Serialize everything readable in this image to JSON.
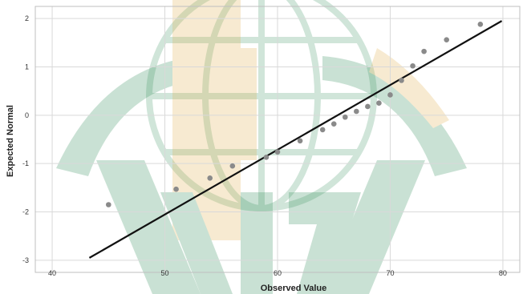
{
  "chart_data": {
    "type": "scatter",
    "title": "",
    "xlabel": "Observed Value",
    "ylabel": "Expected Normal",
    "xlim": [
      38.5,
      81.5
    ],
    "ylim": [
      -3.25,
      2.25
    ],
    "x_ticks": [
      "40",
      "50",
      "60",
      "70",
      "80"
    ],
    "y_ticks": [
      "2",
      "1",
      "0",
      "-1",
      "-2",
      "-3"
    ],
    "x_tick_values": [
      40,
      50,
      60,
      70,
      80
    ],
    "y_tick_values": [
      2,
      1,
      0,
      -1,
      -2,
      -3
    ],
    "grid": true,
    "points": [
      {
        "x": 45,
        "y": -1.85
      },
      {
        "x": 51,
        "y": -1.53
      },
      {
        "x": 54,
        "y": -1.3
      },
      {
        "x": 56,
        "y": -1.05
      },
      {
        "x": 59,
        "y": -0.87
      },
      {
        "x": 60,
        "y": -0.76
      },
      {
        "x": 62,
        "y": -0.53
      },
      {
        "x": 64,
        "y": -0.3
      },
      {
        "x": 65,
        "y": -0.18
      },
      {
        "x": 66,
        "y": -0.04
      },
      {
        "x": 67,
        "y": 0.08
      },
      {
        "x": 68,
        "y": 0.18
      },
      {
        "x": 69,
        "y": 0.25
      },
      {
        "x": 70,
        "y": 0.42
      },
      {
        "x": 71,
        "y": 0.72
      },
      {
        "x": 72,
        "y": 1.02
      },
      {
        "x": 73,
        "y": 1.32
      },
      {
        "x": 75,
        "y": 1.56
      },
      {
        "x": 78,
        "y": 1.88
      }
    ],
    "reference_line": {
      "x": [
        43.3,
        79.9
      ],
      "y": [
        -2.95,
        1.95
      ]
    },
    "point_color": "#8a8a8a",
    "line_color": "#111111",
    "grid_color": "#d9d9d9"
  },
  "watermark": {
    "green": "#2e8b57",
    "gold": "#e3b04b"
  }
}
